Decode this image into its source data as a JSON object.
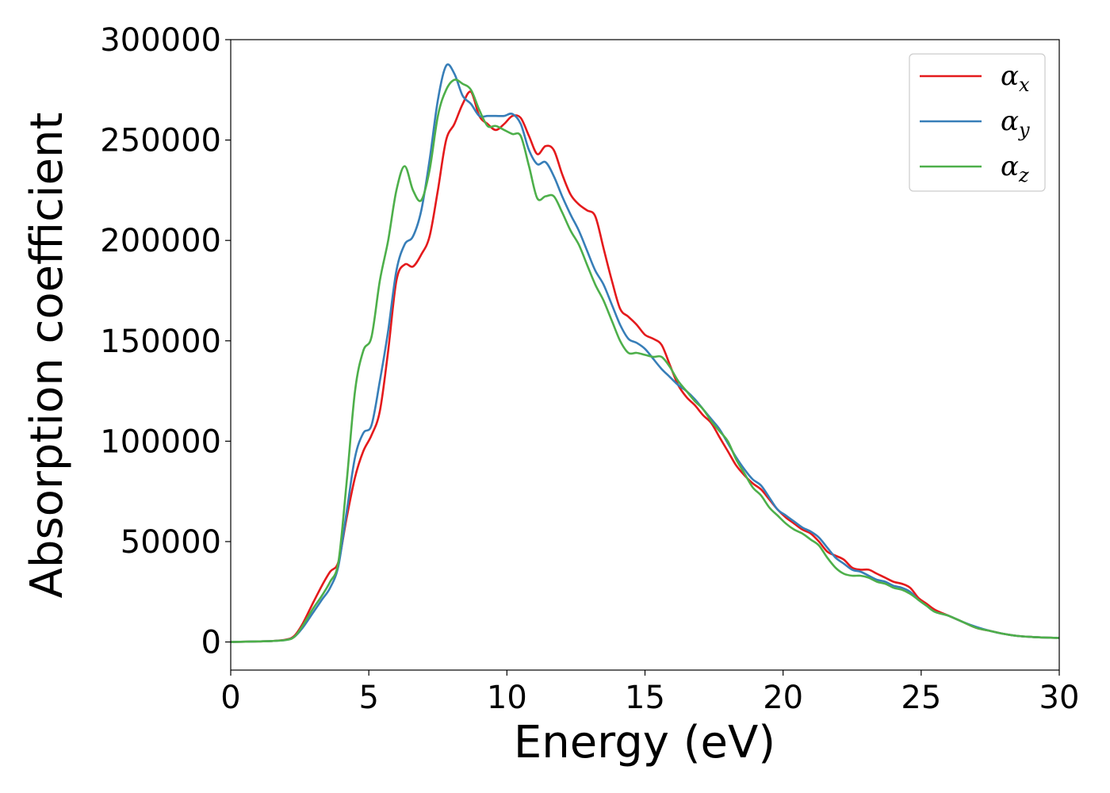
{
  "chart_data": {
    "type": "line",
    "title": "",
    "xlabel": "Energy (eV)",
    "ylabel": "Absorption coefficient",
    "xlim": [
      0,
      30
    ],
    "ylim": [
      -14000,
      300000
    ],
    "xticks": [
      0,
      5,
      10,
      15,
      20,
      25,
      30
    ],
    "yticks": [
      0,
      50000,
      100000,
      150000,
      200000,
      250000,
      300000
    ],
    "grid": false,
    "legend": {
      "placement": "top-right",
      "entries": [
        {
          "symbol": "α",
          "sub": "x",
          "color": "#e41a1c"
        },
        {
          "symbol": "α",
          "sub": "y",
          "color": "#377eb8"
        },
        {
          "symbol": "α",
          "sub": "z",
          "color": "#4daf4a"
        }
      ]
    },
    "series": [
      {
        "color": "#e41a1c",
        "x": [
          0,
          1,
          1.5,
          2,
          2.3,
          2.6,
          3,
          3.3,
          3.6,
          3.9,
          4.2,
          4.5,
          4.8,
          5.1,
          5.4,
          5.7,
          6,
          6.3,
          6.6,
          6.9,
          7.2,
          7.5,
          7.8,
          8.1,
          8.4,
          8.7,
          9,
          9.3,
          9.6,
          9.9,
          10.2,
          10.5,
          10.8,
          11.1,
          11.4,
          11.7,
          12,
          12.3,
          12.6,
          12.9,
          13.2,
          13.5,
          13.8,
          14.1,
          14.4,
          14.7,
          15,
          15.3,
          15.6,
          15.9,
          16.2,
          16.5,
          16.8,
          17.1,
          17.4,
          17.7,
          18,
          18.3,
          18.6,
          18.9,
          19.2,
          19.5,
          19.8,
          20.1,
          20.4,
          20.7,
          21,
          21.3,
          21.6,
          21.9,
          22.2,
          22.5,
          22.8,
          23.1,
          23.4,
          23.7,
          24,
          24.3,
          24.6,
          24.9,
          25.2,
          25.5,
          26,
          26.5,
          27,
          27.5,
          28,
          28.5,
          29,
          29.5,
          30
        ],
        "values": [
          0,
          300,
          500,
          1200,
          3000,
          9000,
          20000,
          28000,
          35000,
          40000,
          62000,
          82000,
          95000,
          103000,
          115000,
          145000,
          180000,
          188000,
          187000,
          193000,
          202000,
          225000,
          250000,
          258000,
          268000,
          274000,
          262000,
          258000,
          255000,
          258000,
          262000,
          261000,
          252000,
          243000,
          247000,
          245000,
          233000,
          223000,
          218000,
          215000,
          212000,
          196000,
          180000,
          166000,
          162000,
          158000,
          153000,
          151000,
          148000,
          138000,
          128000,
          122000,
          118000,
          113000,
          109000,
          102000,
          95000,
          88000,
          83000,
          79000,
          76000,
          71000,
          66000,
          62000,
          59000,
          56000,
          54000,
          50000,
          45000,
          43000,
          41000,
          37000,
          36000,
          36000,
          34000,
          32000,
          30000,
          29000,
          27000,
          22000,
          19000,
          16000,
          13000,
          10000,
          7000,
          5500,
          4000,
          3000,
          2500,
          2200,
          2000
        ]
      },
      {
        "color": "#377eb8",
        "x": [
          0,
          1,
          1.5,
          2,
          2.3,
          2.6,
          3,
          3.3,
          3.6,
          3.9,
          4.2,
          4.5,
          4.8,
          5.1,
          5.4,
          5.7,
          6,
          6.3,
          6.6,
          6.9,
          7.2,
          7.5,
          7.8,
          8.1,
          8.4,
          8.7,
          9,
          9.3,
          9.6,
          9.9,
          10.2,
          10.5,
          10.8,
          11.1,
          11.4,
          11.7,
          12,
          12.3,
          12.6,
          12.9,
          13.2,
          13.5,
          13.8,
          14.1,
          14.4,
          14.7,
          15,
          15.3,
          15.6,
          15.9,
          16.2,
          16.5,
          16.8,
          17.1,
          17.4,
          17.7,
          18,
          18.3,
          18.6,
          18.9,
          19.2,
          19.5,
          19.8,
          20.1,
          20.4,
          20.7,
          21,
          21.3,
          21.6,
          21.9,
          22.2,
          22.5,
          22.8,
          23.1,
          23.4,
          23.7,
          24,
          24.3,
          24.6,
          24.9,
          25.2,
          25.5,
          26,
          26.5,
          27,
          27.5,
          28,
          28.5,
          29,
          29.5,
          30
        ],
        "values": [
          0,
          300,
          500,
          1000,
          2500,
          7000,
          15000,
          21000,
          27000,
          38000,
          65000,
          92000,
          104000,
          108000,
          130000,
          155000,
          185000,
          198000,
          202000,
          215000,
          240000,
          270000,
          287000,
          283000,
          272000,
          268000,
          262000,
          262000,
          262000,
          262000,
          263000,
          258000,
          245000,
          238000,
          239000,
          232000,
          222000,
          213000,
          205000,
          195000,
          185000,
          178000,
          168000,
          158000,
          151000,
          149000,
          146000,
          141000,
          136000,
          132000,
          128000,
          125000,
          121000,
          116000,
          111000,
          106000,
          99000,
          92000,
          86000,
          81000,
          78000,
          72000,
          66000,
          63000,
          60000,
          57000,
          55000,
          52000,
          47000,
          42000,
          39000,
          36000,
          35000,
          33000,
          31000,
          30000,
          28000,
          27000,
          25000,
          21000,
          18000,
          15000,
          13000,
          10000,
          7500,
          5500,
          4000,
          3000,
          2500,
          2200,
          2000
        ]
      },
      {
        "color": "#4daf4a",
        "x": [
          0,
          1,
          1.5,
          2,
          2.3,
          2.6,
          3,
          3.3,
          3.6,
          3.9,
          4.2,
          4.5,
          4.8,
          5.1,
          5.4,
          5.7,
          6,
          6.3,
          6.6,
          6.9,
          7.2,
          7.5,
          7.8,
          8.1,
          8.4,
          8.7,
          9,
          9.3,
          9.6,
          9.9,
          10.2,
          10.5,
          10.8,
          11.1,
          11.4,
          11.7,
          12,
          12.3,
          12.6,
          12.9,
          13.2,
          13.5,
          13.8,
          14.1,
          14.4,
          14.7,
          15,
          15.3,
          15.6,
          15.9,
          16.2,
          16.5,
          16.8,
          17.1,
          17.4,
          17.7,
          18,
          18.3,
          18.6,
          18.9,
          19.2,
          19.5,
          19.8,
          20.1,
          20.4,
          20.7,
          21,
          21.3,
          21.6,
          21.9,
          22.2,
          22.5,
          22.8,
          23.1,
          23.4,
          23.7,
          24,
          24.3,
          24.6,
          24.9,
          25.2,
          25.5,
          26,
          26.5,
          27,
          27.5,
          28,
          28.5,
          29,
          29.5,
          30
        ],
        "values": [
          0,
          300,
          500,
          1000,
          2500,
          8000,
          17000,
          23000,
          30000,
          40000,
          80000,
          125000,
          145000,
          152000,
          180000,
          200000,
          225000,
          237000,
          225000,
          220000,
          235000,
          262000,
          275000,
          280000,
          278000,
          275000,
          265000,
          257000,
          257000,
          255000,
          253000,
          252000,
          237000,
          221000,
          222000,
          222000,
          214000,
          205000,
          198000,
          188000,
          178000,
          170000,
          160000,
          150000,
          144000,
          144000,
          143000,
          142000,
          142000,
          137000,
          130000,
          125000,
          120000,
          116000,
          110000,
          105000,
          100000,
          91000,
          84000,
          77000,
          73000,
          67000,
          63000,
          59000,
          56000,
          54000,
          51000,
          48000,
          42000,
          37000,
          34000,
          33000,
          33000,
          32000,
          30000,
          29000,
          27000,
          26000,
          24000,
          21000,
          18000,
          15000,
          13000,
          10000,
          7000,
          5500,
          4000,
          3000,
          2500,
          2200,
          2000
        ]
      }
    ]
  }
}
